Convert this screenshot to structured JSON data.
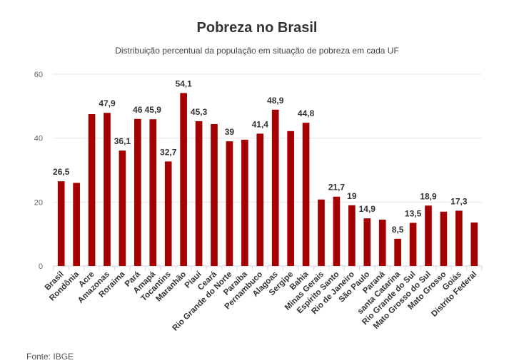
{
  "chart_data": {
    "type": "bar",
    "title": "Pobreza no Brasil",
    "subtitle": "Distribuição percentual da população em situação de pobreza em cada UF",
    "source": "Fonte: IBGE",
    "xlabel": "",
    "ylabel": "",
    "ylim": [
      0,
      60
    ],
    "yticks": [
      "0",
      "20",
      "40",
      "60"
    ],
    "grid": true,
    "bar_color": "#a50000",
    "categories": [
      "Brasil",
      "Rondônia",
      "Acre",
      "Amazonas",
      "Roraima",
      "Pará",
      "Amapá",
      "Tocantins",
      "Maranhão",
      "Piauí",
      "Ceará",
      "Rio Grande do Norte",
      "Paraíba",
      "Pernambuco",
      "Alagoas",
      "Sergipe",
      "Bahia",
      "Minas Gerais",
      "Espírito Santo",
      "Rio de Janeiro",
      "São Paulo",
      "Paraná",
      "santa Catarina",
      "Rio Grande do Sul",
      "Mato Grosso do Sul",
      "Mato Grosso",
      "Goiás",
      "Distrito Federal"
    ],
    "values": [
      26.5,
      26.0,
      47.5,
      47.9,
      36.1,
      46,
      45.9,
      32.7,
      54.1,
      45.3,
      44.4,
      39,
      39.5,
      41.4,
      48.9,
      42.2,
      44.8,
      20.8,
      21.7,
      19,
      14.9,
      14.5,
      8.5,
      13.5,
      18.9,
      17.0,
      17.3,
      13.6
    ],
    "data_labels": [
      "26,5",
      "",
      "",
      "47,9",
      "36,1",
      "46",
      "45,9",
      "32,7",
      "54,1",
      "45,3",
      "",
      "39",
      "",
      "41,4",
      "48,9",
      "",
      "44,8",
      "",
      "21,7",
      "19",
      "14,9",
      "",
      "8,5",
      "13,5",
      "18,9",
      "",
      "17,3",
      ""
    ]
  }
}
